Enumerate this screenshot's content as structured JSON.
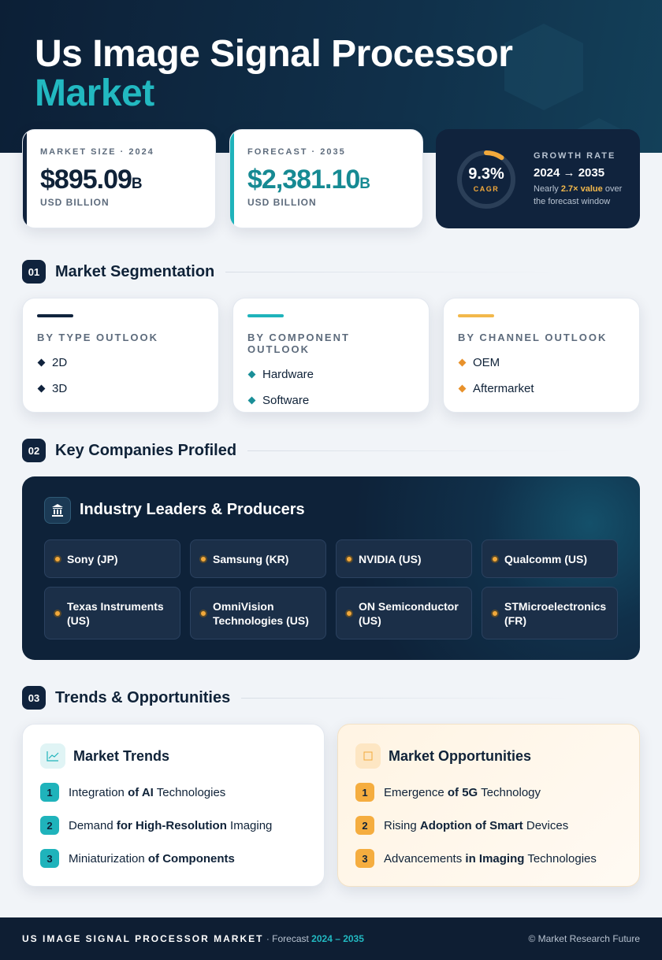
{
  "header": {
    "title": "Us Image Signal Processor",
    "title_highlight": "Market"
  },
  "stats": [
    {
      "label": "MARKET SIZE · 2024",
      "value": "$895.09",
      "unit": "B",
      "caption": "USD BILLION"
    },
    {
      "label": "FORECAST · 2035",
      "value": "$2,381.10",
      "unit": "B",
      "caption": "USD BILLION"
    }
  ],
  "growth": {
    "value": "9.3%",
    "value_caption": "CAGR",
    "label": "GROWTH RATE",
    "period": "2024 → 2035",
    "note": [
      "Nearly",
      "2.7× value",
      "over the forecast window"
    ]
  },
  "sections": [
    {
      "number": "01",
      "title": "Market Segmentation"
    },
    {
      "number": "02",
      "title": "Key Companies Profiled"
    },
    {
      "number": "03",
      "title": "Trends & Opportunities"
    }
  ],
  "segmentation": [
    {
      "title": "BY TYPE OUTLOOK",
      "items": [
        "2D",
        "3D"
      ]
    },
    {
      "title": "BY COMPONENT OUTLOOK",
      "items": [
        "Hardware",
        "Software"
      ]
    },
    {
      "title": "BY CHANNEL OUTLOOK",
      "items": [
        "OEM",
        "Aftermarket"
      ]
    }
  ],
  "companies": {
    "title": "Industry Leaders & Producers",
    "items": [
      "Sony (JP)",
      "Samsung (KR)",
      "NVIDIA (US)",
      "Qualcomm (US)",
      "Texas Instruments (US)",
      "OmniVision Technologies (US)",
      "ON Semiconductor (US)",
      "STMicroelectronics (FR)"
    ]
  },
  "trends": {
    "title": "Market Trends",
    "items": [
      {
        "number": "1",
        "parts": [
          "Integration",
          "of AI",
          "Technologies"
        ]
      },
      {
        "number": "2",
        "parts": [
          "Demand",
          "for High-Resolution",
          "Imaging"
        ]
      },
      {
        "number": "3",
        "parts": [
          "Miniaturization",
          "of Components"
        ]
      }
    ]
  },
  "opportunities": {
    "title": "Market Opportunities",
    "items": [
      {
        "number": "1",
        "parts": [
          "Emergence",
          "of 5G",
          "Technology"
        ]
      },
      {
        "number": "2",
        "parts": [
          "Rising",
          "Adoption of Smart",
          "Devices"
        ]
      },
      {
        "number": "3",
        "parts": [
          "Advancements",
          "in Imaging",
          "Technologies"
        ]
      }
    ]
  },
  "footer": {
    "title": "US IMAGE SIGNAL PROCESSOR MARKET",
    "forecast_label": "· Forecast",
    "period": "2024 – 2035",
    "credit": "© Market Research Future"
  }
}
